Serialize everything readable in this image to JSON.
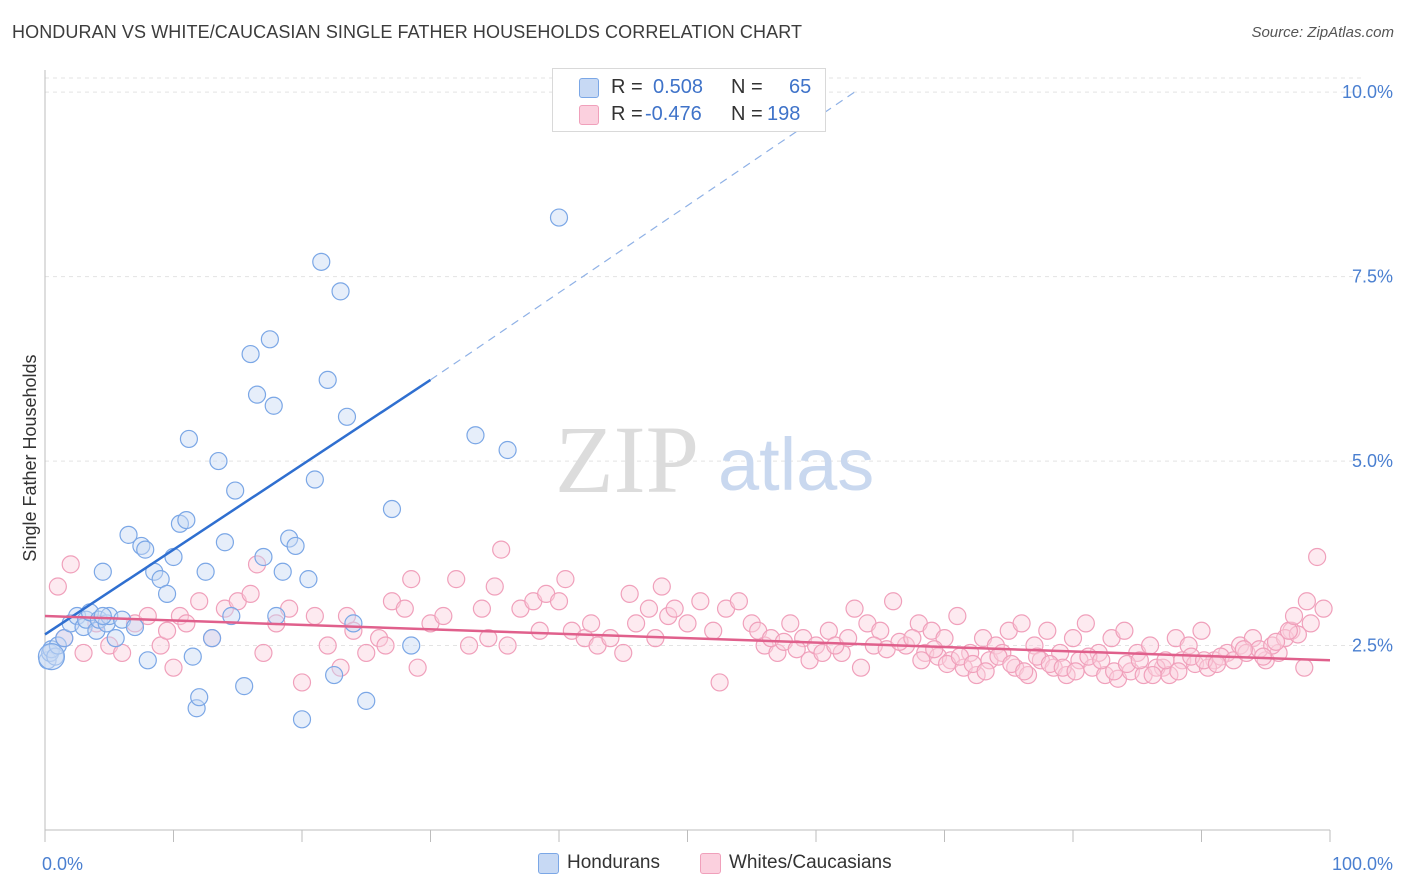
{
  "header": {
    "title": "HONDURAN VS WHITE/CAUCASIAN SINGLE FATHER HOUSEHOLDS CORRELATION CHART",
    "source": "Source: ZipAtlas.com"
  },
  "watermark": {
    "zip": "ZIP",
    "atlas": "atlas"
  },
  "legend_top": {
    "rows": [
      {
        "r_label": "R =",
        "r_value": "0.508",
        "n_label": "N =",
        "n_value": "65",
        "color": "#7ba7e6"
      },
      {
        "r_label": "R =",
        "r_value": "-0.476",
        "n_label": "N =",
        "n_value": "198",
        "color": "#f0a0bb"
      }
    ]
  },
  "legend_bottom": {
    "items": [
      {
        "label": "Hondurans",
        "color": "#7ba7e6"
      },
      {
        "label": "Whites/Caucasians",
        "color": "#f0a0bb"
      }
    ]
  },
  "chart_data": {
    "type": "scatter",
    "title": "HONDURAN VS WHITE/CAUCASIAN SINGLE FATHER HOUSEHOLDS CORRELATION CHART",
    "xlabel": "",
    "ylabel": "Single Father Households",
    "xlim": [
      0,
      100
    ],
    "ylim": [
      0,
      10.3
    ],
    "x_tick_labels": [
      "0.0%",
      "100.0%"
    ],
    "y_ticks": [
      2.5,
      5.0,
      7.5,
      10.0
    ],
    "y_tick_labels": [
      "2.5%",
      "5.0%",
      "7.5%",
      "10.0%"
    ],
    "grid": true,
    "series": [
      {
        "name": "Hondurans",
        "color": "#7ba7e6",
        "line_color": "#2f6fd0",
        "trend": {
          "x0": 0,
          "y0": 2.65,
          "x1": 30,
          "y1": 6.1,
          "dashed_to_x": 63,
          "dashed_to_y": 10.0
        },
        "points": [
          [
            0.2,
            2.3
          ],
          [
            0.4,
            2.4
          ],
          [
            0.5,
            2.45
          ],
          [
            0.8,
            2.35
          ],
          [
            1.0,
            2.5
          ],
          [
            1.5,
            2.6
          ],
          [
            2.0,
            2.8
          ],
          [
            2.5,
            2.9
          ],
          [
            3.0,
            2.75
          ],
          [
            3.2,
            2.85
          ],
          [
            3.5,
            2.95
          ],
          [
            4.0,
            2.7
          ],
          [
            4.2,
            2.85
          ],
          [
            4.5,
            3.5
          ],
          [
            4.8,
            2.8
          ],
          [
            5.0,
            2.9
          ],
          [
            5.5,
            2.6
          ],
          [
            4.5,
            2.9
          ],
          [
            6.0,
            2.85
          ],
          [
            6.5,
            4.0
          ],
          [
            7.0,
            2.75
          ],
          [
            7.5,
            3.85
          ],
          [
            7.8,
            3.8
          ],
          [
            8.0,
            2.3
          ],
          [
            8.5,
            3.5
          ],
          [
            9.0,
            3.4
          ],
          [
            9.5,
            3.2
          ],
          [
            10.0,
            3.7
          ],
          [
            10.5,
            4.15
          ],
          [
            11.0,
            4.2
          ],
          [
            11.2,
            5.3
          ],
          [
            11.5,
            2.35
          ],
          [
            11.8,
            1.65
          ],
          [
            12.0,
            1.8
          ],
          [
            12.5,
            3.5
          ],
          [
            13.0,
            2.6
          ],
          [
            13.5,
            5.0
          ],
          [
            14.0,
            3.9
          ],
          [
            14.5,
            2.9
          ],
          [
            14.8,
            4.6
          ],
          [
            15.5,
            1.95
          ],
          [
            16.0,
            6.45
          ],
          [
            16.5,
            5.9
          ],
          [
            17.0,
            3.7
          ],
          [
            17.5,
            6.65
          ],
          [
            17.8,
            5.75
          ],
          [
            18.0,
            2.9
          ],
          [
            18.5,
            3.5
          ],
          [
            19.0,
            3.95
          ],
          [
            19.5,
            3.85
          ],
          [
            20.0,
            1.5
          ],
          [
            20.5,
            3.4
          ],
          [
            21.0,
            4.75
          ],
          [
            21.5,
            7.7
          ],
          [
            22.0,
            6.1
          ],
          [
            22.5,
            2.1
          ],
          [
            23.0,
            7.3
          ],
          [
            23.5,
            5.6
          ],
          [
            24.0,
            2.8
          ],
          [
            25.0,
            1.75
          ],
          [
            27.0,
            4.35
          ],
          [
            28.5,
            2.5
          ],
          [
            33.5,
            5.35
          ],
          [
            36.0,
            5.15
          ],
          [
            40.0,
            8.3
          ]
        ]
      },
      {
        "name": "Whites/Caucasians",
        "color": "#f0a0bb",
        "line_color": "#e0608c",
        "trend": {
          "x0": 0,
          "y0": 2.9,
          "x1": 100,
          "y1": 2.3
        },
        "points": [
          [
            1.0,
            3.3
          ],
          [
            1.5,
            2.6
          ],
          [
            2.0,
            3.6
          ],
          [
            3.0,
            2.4
          ],
          [
            4.0,
            2.8
          ],
          [
            5.0,
            2.5
          ],
          [
            6.0,
            2.4
          ],
          [
            7.0,
            2.8
          ],
          [
            8.0,
            2.9
          ],
          [
            9.0,
            2.5
          ],
          [
            9.5,
            2.7
          ],
          [
            10.0,
            2.2
          ],
          [
            10.5,
            2.9
          ],
          [
            11.0,
            2.8
          ],
          [
            12.0,
            3.1
          ],
          [
            13.0,
            2.6
          ],
          [
            14.0,
            3.0
          ],
          [
            15.0,
            3.1
          ],
          [
            16.0,
            3.2
          ],
          [
            16.5,
            3.6
          ],
          [
            17.0,
            2.4
          ],
          [
            18.0,
            2.8
          ],
          [
            19.0,
            3.0
          ],
          [
            20.0,
            2.0
          ],
          [
            21.0,
            2.9
          ],
          [
            22.0,
            2.5
          ],
          [
            23.0,
            2.2
          ],
          [
            23.5,
            2.9
          ],
          [
            24.0,
            2.7
          ],
          [
            25.0,
            2.4
          ],
          [
            26.0,
            2.6
          ],
          [
            26.5,
            2.5
          ],
          [
            27.0,
            3.1
          ],
          [
            28.0,
            3.0
          ],
          [
            28.5,
            3.4
          ],
          [
            29.0,
            2.2
          ],
          [
            30.0,
            2.8
          ],
          [
            31.0,
            2.9
          ],
          [
            32.0,
            3.4
          ],
          [
            33.0,
            2.5
          ],
          [
            34.0,
            3.0
          ],
          [
            34.5,
            2.6
          ],
          [
            35.0,
            3.3
          ],
          [
            35.5,
            3.8
          ],
          [
            36.0,
            2.5
          ],
          [
            37.0,
            3.0
          ],
          [
            38.0,
            3.1
          ],
          [
            38.5,
            2.7
          ],
          [
            39.0,
            3.2
          ],
          [
            40.0,
            3.1
          ],
          [
            40.5,
            3.4
          ],
          [
            41.0,
            2.7
          ],
          [
            42.0,
            2.6
          ],
          [
            42.5,
            2.8
          ],
          [
            43.0,
            2.5
          ],
          [
            44.0,
            2.6
          ],
          [
            45.0,
            2.4
          ],
          [
            45.5,
            3.2
          ],
          [
            46.0,
            2.8
          ],
          [
            47.0,
            3.0
          ],
          [
            47.5,
            2.6
          ],
          [
            48.0,
            3.3
          ],
          [
            48.5,
            2.9
          ],
          [
            49.0,
            3.0
          ],
          [
            50.0,
            2.8
          ],
          [
            51.0,
            3.1
          ],
          [
            52.0,
            2.7
          ],
          [
            52.5,
            2.0
          ],
          [
            53.0,
            3.0
          ],
          [
            54.0,
            3.1
          ],
          [
            55.0,
            2.8
          ],
          [
            56.0,
            2.5
          ],
          [
            57.0,
            2.4
          ],
          [
            58.0,
            2.8
          ],
          [
            59.0,
            2.6
          ],
          [
            59.5,
            2.3
          ],
          [
            60.0,
            2.5
          ],
          [
            61.0,
            2.7
          ],
          [
            62.0,
            2.4
          ],
          [
            63.0,
            3.0
          ],
          [
            63.5,
            2.2
          ],
          [
            64.0,
            2.8
          ],
          [
            65.0,
            2.7
          ],
          [
            66.0,
            3.1
          ],
          [
            67.0,
            2.5
          ],
          [
            68.0,
            2.8
          ],
          [
            69.0,
            2.7
          ],
          [
            70.0,
            2.6
          ],
          [
            71.0,
            2.9
          ],
          [
            72.0,
            2.4
          ],
          [
            73.0,
            2.6
          ],
          [
            74.0,
            2.5
          ],
          [
            75.0,
            2.7
          ],
          [
            76.0,
            2.8
          ],
          [
            77.0,
            2.5
          ],
          [
            78.0,
            2.7
          ],
          [
            79.0,
            2.4
          ],
          [
            80.0,
            2.6
          ],
          [
            81.0,
            2.8
          ],
          [
            82.0,
            2.4
          ],
          [
            83.0,
            2.6
          ],
          [
            84.0,
            2.7
          ],
          [
            85.0,
            2.4
          ],
          [
            86.0,
            2.5
          ],
          [
            87.0,
            2.2
          ],
          [
            88.0,
            2.6
          ],
          [
            89.0,
            2.5
          ],
          [
            90.0,
            2.7
          ],
          [
            91.0,
            2.3
          ],
          [
            92.0,
            2.4
          ],
          [
            93.0,
            2.5
          ],
          [
            94.0,
            2.6
          ],
          [
            95.0,
            2.3
          ],
          [
            96.0,
            2.4
          ],
          [
            97.0,
            2.7
          ],
          [
            98.0,
            2.2
          ],
          [
            99.0,
            3.7
          ],
          [
            55.5,
            2.7
          ],
          [
            56.5,
            2.6
          ],
          [
            57.5,
            2.55
          ],
          [
            58.5,
            2.45
          ],
          [
            60.5,
            2.4
          ],
          [
            61.5,
            2.5
          ],
          [
            62.5,
            2.6
          ],
          [
            64.5,
            2.5
          ],
          [
            65.5,
            2.45
          ],
          [
            66.5,
            2.55
          ],
          [
            67.5,
            2.6
          ],
          [
            68.5,
            2.4
          ],
          [
            69.5,
            2.35
          ],
          [
            70.5,
            2.3
          ],
          [
            71.5,
            2.2
          ],
          [
            72.5,
            2.1
          ],
          [
            73.5,
            2.3
          ],
          [
            74.5,
            2.4
          ],
          [
            75.5,
            2.2
          ],
          [
            76.5,
            2.1
          ],
          [
            77.5,
            2.3
          ],
          [
            78.5,
            2.2
          ],
          [
            79.5,
            2.1
          ],
          [
            80.5,
            2.3
          ],
          [
            81.5,
            2.2
          ],
          [
            82.5,
            2.1
          ],
          [
            83.5,
            2.05
          ],
          [
            84.5,
            2.15
          ],
          [
            85.5,
            2.1
          ],
          [
            86.5,
            2.2
          ],
          [
            87.5,
            2.1
          ],
          [
            88.5,
            2.3
          ],
          [
            89.5,
            2.25
          ],
          [
            90.5,
            2.2
          ],
          [
            91.5,
            2.35
          ],
          [
            92.5,
            2.3
          ],
          [
            93.5,
            2.4
          ],
          [
            94.5,
            2.45
          ],
          [
            95.5,
            2.5
          ],
          [
            96.5,
            2.6
          ],
          [
            97.5,
            2.65
          ],
          [
            98.5,
            2.8
          ],
          [
            99.5,
            3.0
          ],
          [
            93.3,
            2.45
          ],
          [
            94.8,
            2.35
          ],
          [
            95.8,
            2.55
          ],
          [
            96.8,
            2.7
          ],
          [
            97.2,
            2.9
          ],
          [
            98.2,
            3.1
          ],
          [
            68.2,
            2.3
          ],
          [
            69.2,
            2.45
          ],
          [
            70.2,
            2.25
          ],
          [
            71.2,
            2.35
          ],
          [
            72.2,
            2.25
          ],
          [
            73.2,
            2.15
          ],
          [
            74.2,
            2.35
          ],
          [
            75.2,
            2.25
          ],
          [
            76.2,
            2.15
          ],
          [
            77.2,
            2.35
          ],
          [
            78.2,
            2.25
          ],
          [
            79.2,
            2.2
          ],
          [
            80.2,
            2.15
          ],
          [
            81.2,
            2.35
          ],
          [
            82.2,
            2.3
          ],
          [
            83.2,
            2.15
          ],
          [
            84.2,
            2.25
          ],
          [
            85.2,
            2.3
          ],
          [
            86.2,
            2.1
          ],
          [
            87.2,
            2.3
          ],
          [
            88.2,
            2.15
          ],
          [
            89.2,
            2.35
          ],
          [
            90.2,
            2.3
          ],
          [
            91.2,
            2.25
          ]
        ]
      }
    ]
  }
}
